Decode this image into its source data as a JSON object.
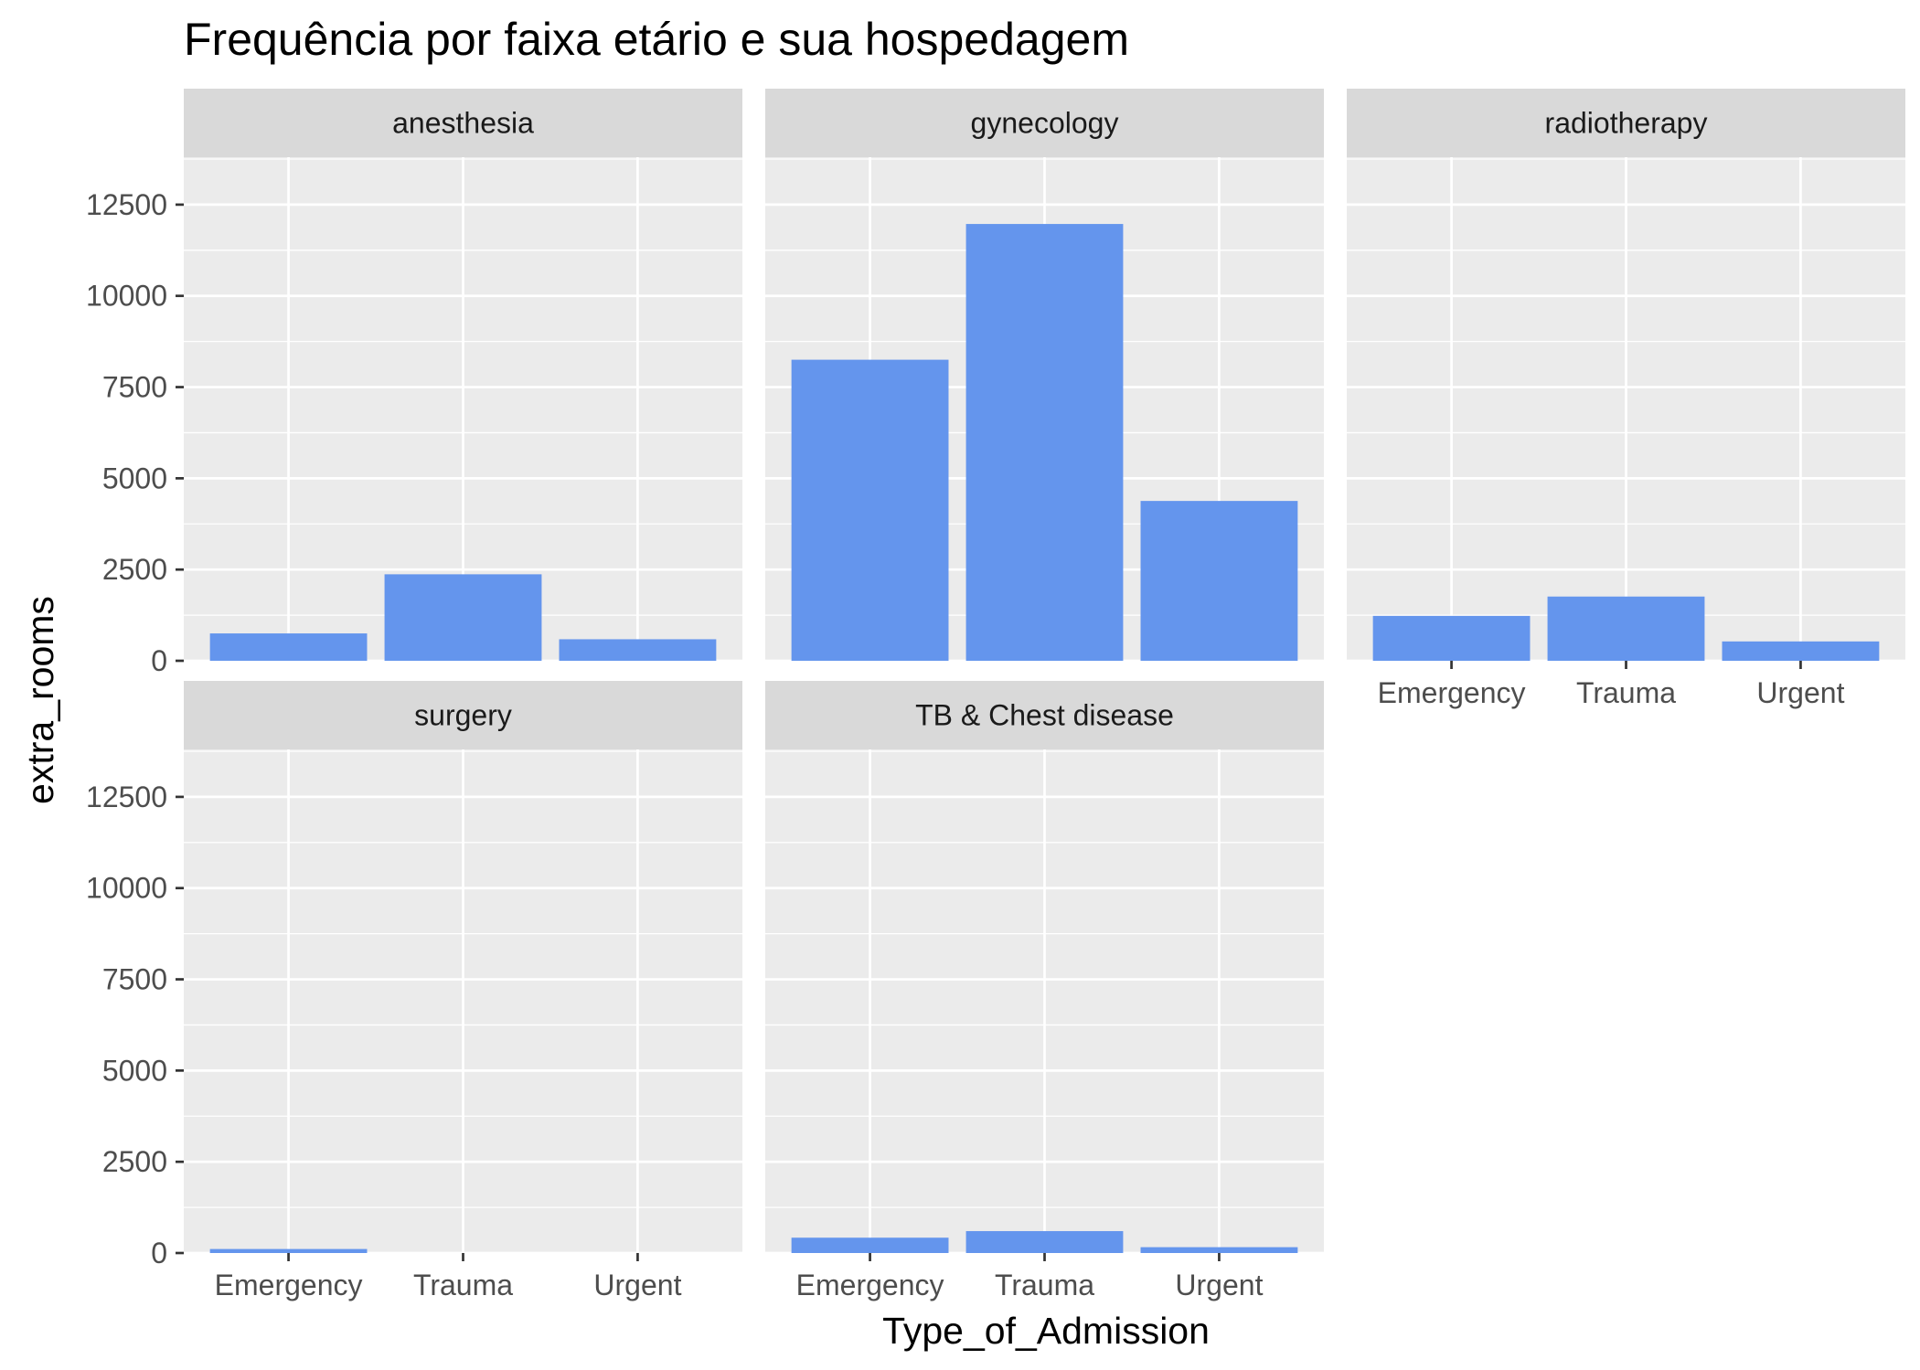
{
  "chart_data": {
    "type": "bar",
    "title": "Frequência por faixa etário e sua hospedagem",
    "xlabel": "Type_of_Admission",
    "ylabel": "extra_rooms",
    "ylim": [
      0,
      13800
    ],
    "yticks": [
      0,
      2500,
      5000,
      7500,
      10000,
      12500
    ],
    "grid": true,
    "facet_layout": "3 columns x 2 rows",
    "bar_color": "#6495ED",
    "panel_background": "#EBEBEB",
    "strip_background": "#D9D9D9",
    "categories": [
      "Emergency",
      "Trauma",
      "Urgent"
    ],
    "panels": [
      {
        "name": "anesthesia",
        "values": [
          750,
          2370,
          590
        ]
      },
      {
        "name": "gynecology",
        "values": [
          8250,
          11970,
          4380
        ]
      },
      {
        "name": "radiotherapy",
        "values": [
          1230,
          1760,
          530
        ]
      },
      {
        "name": "surgery",
        "values": [
          110,
          0,
          0
        ]
      },
      {
        "name": "TB & Chest disease",
        "values": [
          420,
          600,
          160
        ]
      }
    ]
  }
}
